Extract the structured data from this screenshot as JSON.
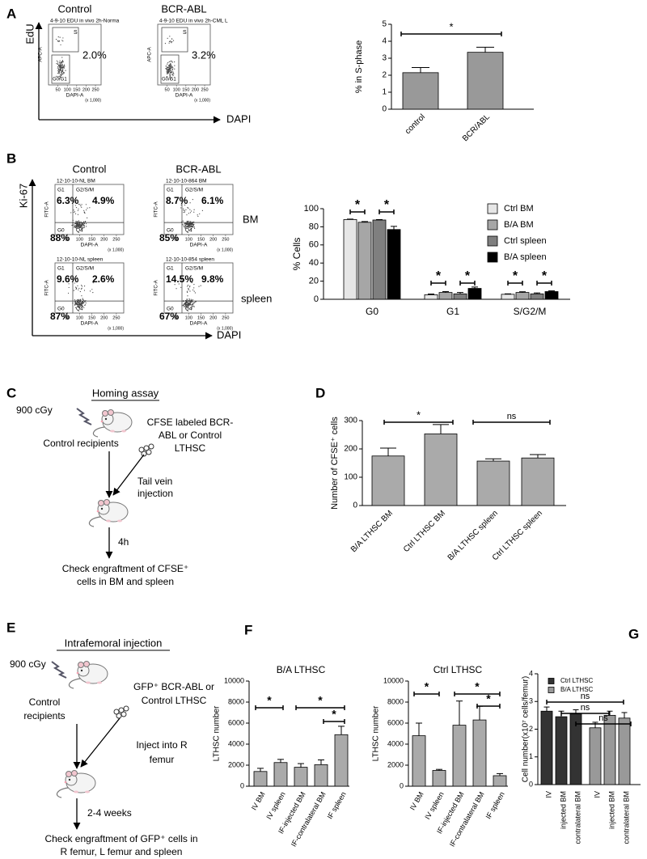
{
  "panels": [
    "A",
    "B",
    "C",
    "D",
    "E",
    "F",
    "G"
  ],
  "flow_a": {
    "columns": [
      "Control",
      "BCR-ABL"
    ],
    "y_axis": "EdU",
    "x_axis": "DAPI",
    "plots": [
      {
        "title": "4-9-10 EDU in vivo 2h-Norma",
        "percent": "2.0%"
      },
      {
        "title": "4-9-10 EDU in vivo 2h-CML L",
        "percent": "3.2%"
      }
    ],
    "gates": [
      "S",
      "G0/G1"
    ],
    "y_label": "APC-A",
    "x_label": "DAPI-A",
    "x_ticks": [
      "50",
      "100",
      "150",
      "200",
      "250"
    ],
    "x_unit": "(x 1,000)"
  },
  "flow_b": {
    "columns": [
      "Control",
      "BCR-ABL"
    ],
    "rows": [
      "BM",
      "spleen"
    ],
    "y_axis": "Ki-67",
    "x_axis": "DAPI",
    "plots": [
      {
        "title": "12-10-10-NL BM",
        "percents": [
          "6.3%",
          "4.9%",
          "88%"
        ]
      },
      {
        "title": "12-10-10-864 BM",
        "percents": [
          "8.7%",
          "6.1%",
          "85%"
        ]
      },
      {
        "title": "12-10-10-NL spleen",
        "percents": [
          "9.6%",
          "2.6%",
          "87%"
        ]
      },
      {
        "title": "12-10-10-854 spleen",
        "percents": [
          "14.5%",
          "9.8%",
          "67%"
        ]
      }
    ],
    "quadrants": [
      "G1",
      "G2/S/M",
      "G0",
      "Q4"
    ],
    "y_label": "FITC-A",
    "x_label": "DAPI-A",
    "x_ticks": [
      "50",
      "100",
      "150",
      "200",
      "250"
    ],
    "x_unit": "(x 1,000)"
  },
  "diagram_c": {
    "title": "Homing assay",
    "dose": "900 cGy",
    "recipients": "Control recipients",
    "cells": [
      "CFSE labeled BCR-",
      "ABL or Control",
      "LTHSC"
    ],
    "injection": [
      "Tail vein",
      "injection"
    ],
    "time": "4h",
    "readout": [
      "Check engraftment of CFSE⁺",
      "cells in BM and spleen"
    ]
  },
  "diagram_e": {
    "title": "Intrafemoral injection",
    "dose": "900 cGy",
    "recipients": [
      "Control",
      "recipients"
    ],
    "cells": [
      "GFP⁺ BCR-ABL or",
      "Control LTHSC"
    ],
    "injection": [
      "Inject into R",
      "femur"
    ],
    "time": "2-4 weeks",
    "readout": [
      "Check engraftment of GFP⁺ cells in",
      "R femur, L femur and spleen"
    ]
  },
  "chart_data": [
    {
      "type": "bar",
      "ylabel": "% in  S-phase",
      "categories": [
        "control",
        "BCR/ABL"
      ],
      "values": [
        2.15,
        3.35
      ],
      "errors": [
        0.3,
        0.3
      ],
      "color": "#999999",
      "ylim": [
        0,
        5
      ],
      "yticks": [
        0,
        1,
        2,
        3,
        4,
        5
      ],
      "annotations": [
        "*"
      ]
    },
    {
      "type": "bar",
      "ylabel": "% Cells",
      "categories": [
        "G0",
        "G1",
        "S/G2/M"
      ],
      "series": [
        {
          "name": "Ctrl BM",
          "color": "#e6e6e6",
          "values": [
            88,
            5,
            5.5
          ],
          "errors": [
            0.5,
            0.8,
            0.5
          ]
        },
        {
          "name": "B/A BM",
          "color": "#a6a6a6",
          "values": [
            85,
            7.5,
            7.5
          ],
          "errors": [
            0.8,
            1,
            0.8
          ]
        },
        {
          "name": "Ctrl spleen",
          "color": "#7f7f7f",
          "values": [
            87.5,
            6,
            6
          ],
          "errors": [
            0.5,
            1.5,
            1
          ]
        },
        {
          "name": "B/A spleen",
          "color": "#000000",
          "values": [
            77,
            12,
            8.5
          ],
          "errors": [
            3.5,
            1.5,
            0.8
          ]
        }
      ],
      "ylim": [
        0,
        100
      ],
      "yticks": [
        0,
        20,
        40,
        60,
        80,
        100
      ],
      "legend": "upper right",
      "annotations": [
        "*",
        "*",
        "*",
        "*",
        "*",
        "*"
      ]
    },
    {
      "type": "bar",
      "ylabel": "Number of CFSE⁺ cells",
      "categories": [
        "B/A LTHSC BM",
        "Ctrl LTHSC BM",
        "B/A LTHSC spleen",
        "Ctrl LTHSC spleen"
      ],
      "values": [
        175,
        253,
        157,
        168
      ],
      "errors": [
        28,
        33,
        8,
        12
      ],
      "color": "#aaaaaa",
      "ylim": [
        0,
        300
      ],
      "yticks": [
        0,
        100,
        200,
        300
      ],
      "annotations": [
        "*",
        "ns"
      ]
    },
    {
      "type": "bar",
      "title": "B/A LTHSC",
      "ylabel": "LTHSC number",
      "categories": [
        "IV BM",
        "IV spleen",
        "IF-injected BM",
        "IF-contralateral BM",
        "IF spleen"
      ],
      "values": [
        1400,
        2250,
        1800,
        2050,
        4900
      ],
      "errors": [
        300,
        300,
        350,
        450,
        800
      ],
      "color": "#aaaaaa",
      "ylim": [
        0,
        10000
      ],
      "yticks": [
        0,
        2000,
        4000,
        6000,
        8000,
        10000
      ],
      "annotations": [
        "*",
        "*",
        "*"
      ]
    },
    {
      "type": "bar",
      "title": "Ctrl LTHSC",
      "ylabel": "LTHSC number",
      "categories": [
        "IV BM",
        "IV spleen",
        "IF-injected BM",
        "IF-contralateral BM",
        "IF spleen"
      ],
      "values": [
        4800,
        1500,
        5800,
        6300,
        1000
      ],
      "errors": [
        1200,
        100,
        2300,
        1300,
        200
      ],
      "color": "#aaaaaa",
      "ylim": [
        0,
        10000
      ],
      "yticks": [
        0,
        2000,
        4000,
        6000,
        8000,
        10000
      ],
      "annotations": [
        "*",
        "*",
        "*"
      ]
    },
    {
      "type": "bar",
      "ylabel": "Cell number(x10⁷ cells/femur)",
      "categories": [
        "IV",
        "injected BM",
        "contralateral BM"
      ],
      "series": [
        {
          "name": "Ctrl LTHSC",
          "color": "#333333",
          "values": [
            2.65,
            2.45,
            2.55
          ],
          "errors": [
            0.15,
            0.2,
            0.15
          ]
        },
        {
          "name": "B/A LTHSC",
          "color": "#999999",
          "values": [
            2.05,
            2.5,
            2.4
          ],
          "errors": [
            0.2,
            0.15,
            0.2
          ]
        }
      ],
      "ylim": [
        0,
        4
      ],
      "yticks": [
        0,
        1,
        2,
        3,
        4
      ],
      "legend": "upper left",
      "annotations": [
        "ns",
        "ns",
        "ns"
      ]
    }
  ]
}
